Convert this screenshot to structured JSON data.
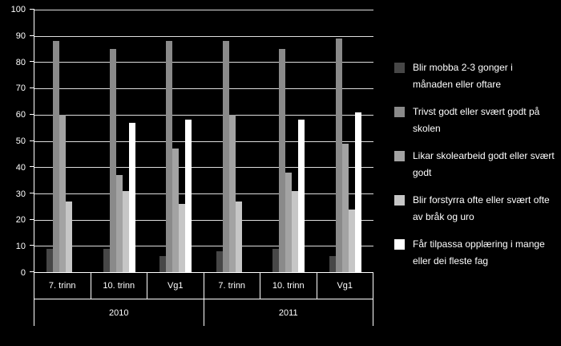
{
  "chart_data": {
    "type": "bar",
    "title": "",
    "xlabel": "",
    "ylabel": "",
    "ylim": [
      0,
      100
    ],
    "yticks": [
      0,
      10,
      20,
      30,
      40,
      50,
      60,
      70,
      80,
      90,
      100
    ],
    "grid": true,
    "legend_position": "right",
    "background": "#000000",
    "axis_color": "#ffffff",
    "groups": [
      "7. trinn",
      "10. trinn",
      "Vg1",
      "7. trinn",
      "10. trinn",
      "Vg1"
    ],
    "year_groups": [
      {
        "label": "2010",
        "span": 3
      },
      {
        "label": "2011",
        "span": 3
      }
    ],
    "series": [
      {
        "name": "Blir mobba 2-3 gonger i månaden eller oftare",
        "color": "#474747",
        "values": [
          9,
          9,
          6,
          8,
          9,
          6
        ]
      },
      {
        "name": "Trivst godt eller svært godt på skolen",
        "color": "#8a8a8a",
        "values": [
          88,
          85,
          88,
          88,
          85,
          89
        ]
      },
      {
        "name": "Likar skolearbeid godt eller svært godt",
        "color": "#a3a3a3",
        "values": [
          60,
          37,
          47,
          60,
          38,
          49
        ]
      },
      {
        "name": "Blir forstyrra ofte eller svært ofte av bråk og uro",
        "color": "#c6c6c6",
        "values": [
          27,
          31,
          26,
          27,
          31,
          24
        ]
      },
      {
        "name": "Får tilpassa opplæring i mange eller dei fleste fag",
        "color": "#ffffff",
        "values": [
          null,
          57,
          58,
          null,
          58,
          61
        ]
      }
    ]
  }
}
